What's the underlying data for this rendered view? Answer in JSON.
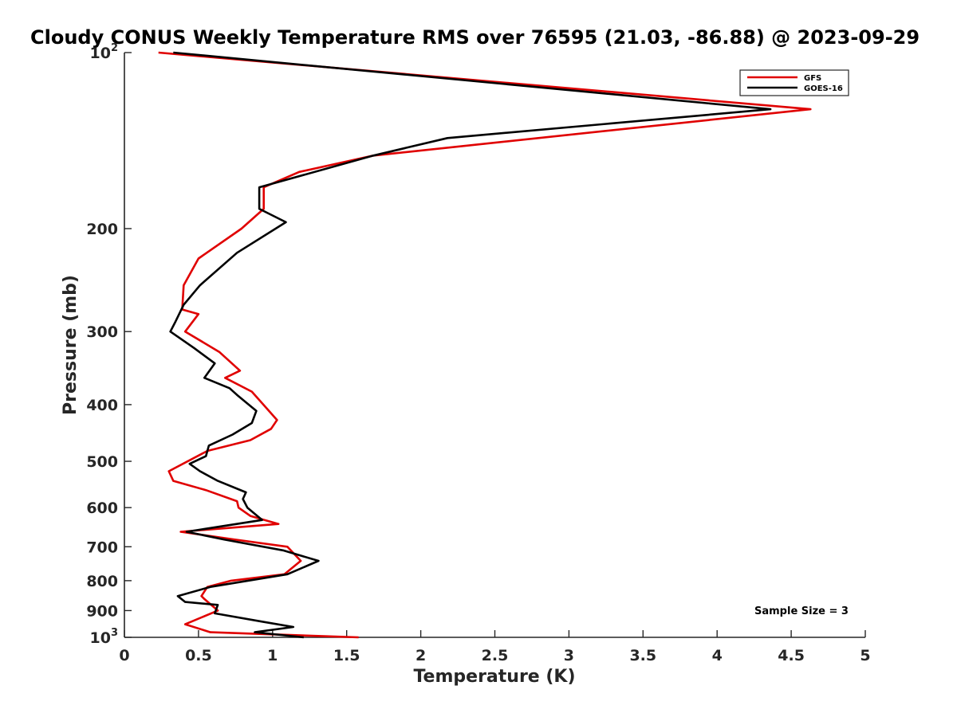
{
  "chart_data": {
    "type": "line",
    "title": "Cloudy CONUS Weekly Temperature RMS over 76595 (21.03, -86.88) @ 2023-09-29",
    "xlabel": "Temperature (K)",
    "ylabel": "Pressure (mb)",
    "xlim": [
      0,
      5
    ],
    "ylim": [
      1000,
      100
    ],
    "yscale": "log",
    "y_reversed": true,
    "grid": false,
    "legend_position": "top-right",
    "x_ticks": [
      "0",
      "0.5",
      "1",
      "1.5",
      "2",
      "2.5",
      "3",
      "3.5",
      "4",
      "4.5",
      "5"
    ],
    "x_tick_values": [
      0,
      0.5,
      1,
      1.5,
      2,
      2.5,
      3,
      3.5,
      4,
      4.5,
      5
    ],
    "y_ticks": [
      {
        "value": 100,
        "base": "10",
        "exp": "2"
      },
      {
        "value": 200,
        "base": "200",
        "exp": ""
      },
      {
        "value": 300,
        "base": "300",
        "exp": ""
      },
      {
        "value": 400,
        "base": "400",
        "exp": ""
      },
      {
        "value": 500,
        "base": "500",
        "exp": ""
      },
      {
        "value": 600,
        "base": "600",
        "exp": ""
      },
      {
        "value": 700,
        "base": "700",
        "exp": ""
      },
      {
        "value": 800,
        "base": "800",
        "exp": ""
      },
      {
        "value": 900,
        "base": "900",
        "exp": ""
      },
      {
        "value": 1000,
        "base": "10",
        "exp": "3"
      }
    ],
    "series": [
      {
        "name": "GFS",
        "color": "#e00000",
        "points": [
          [
            0.23,
            100
          ],
          [
            4.63,
            125
          ],
          [
            1.68,
            150
          ],
          [
            1.18,
            160
          ],
          [
            0.94,
            170
          ],
          [
            0.94,
            185
          ],
          [
            0.79,
            200
          ],
          [
            0.5,
            225
          ],
          [
            0.4,
            250
          ],
          [
            0.39,
            275
          ],
          [
            0.5,
            280
          ],
          [
            0.41,
            300
          ],
          [
            0.64,
            325
          ],
          [
            0.78,
            350
          ],
          [
            0.68,
            360
          ],
          [
            0.86,
            380
          ],
          [
            1.03,
            425
          ],
          [
            0.99,
            440
          ],
          [
            0.85,
            460
          ],
          [
            0.56,
            480
          ],
          [
            0.3,
            520
          ],
          [
            0.33,
            540
          ],
          [
            0.55,
            560
          ],
          [
            0.76,
            585
          ],
          [
            0.77,
            600
          ],
          [
            0.85,
            620
          ],
          [
            1.04,
            640
          ],
          [
            0.38,
            660
          ],
          [
            0.74,
            680
          ],
          [
            1.1,
            700
          ],
          [
            1.19,
            740
          ],
          [
            1.08,
            780
          ],
          [
            0.72,
            800
          ],
          [
            0.56,
            820
          ],
          [
            0.52,
            850
          ],
          [
            0.54,
            860
          ],
          [
            0.63,
            900
          ],
          [
            0.41,
            950
          ],
          [
            0.58,
            980
          ],
          [
            1.58,
            1000
          ]
        ]
      },
      {
        "name": "GOES-16",
        "color": "#000000",
        "points": [
          [
            0.33,
            100
          ],
          [
            4.36,
            125
          ],
          [
            2.18,
            140
          ],
          [
            1.68,
            150
          ],
          [
            0.91,
            170
          ],
          [
            0.91,
            185
          ],
          [
            1.09,
            195
          ],
          [
            0.76,
            220
          ],
          [
            0.51,
            250
          ],
          [
            0.4,
            270
          ],
          [
            0.34,
            290
          ],
          [
            0.31,
            300
          ],
          [
            0.47,
            320
          ],
          [
            0.61,
            340
          ],
          [
            0.54,
            360
          ],
          [
            0.71,
            375
          ],
          [
            0.76,
            385
          ],
          [
            0.89,
            410
          ],
          [
            0.86,
            430
          ],
          [
            0.73,
            450
          ],
          [
            0.57,
            470
          ],
          [
            0.55,
            490
          ],
          [
            0.44,
            505
          ],
          [
            0.51,
            520
          ],
          [
            0.63,
            540
          ],
          [
            0.82,
            565
          ],
          [
            0.8,
            580
          ],
          [
            0.83,
            600
          ],
          [
            0.93,
            630
          ],
          [
            0.42,
            660
          ],
          [
            0.67,
            680
          ],
          [
            1.07,
            710
          ],
          [
            1.31,
            740
          ],
          [
            1.1,
            780
          ],
          [
            0.58,
            820
          ],
          [
            0.36,
            850
          ],
          [
            0.41,
            870
          ],
          [
            0.63,
            880
          ],
          [
            0.61,
            910
          ],
          [
            0.93,
            940
          ],
          [
            1.14,
            960
          ],
          [
            0.88,
            980
          ],
          [
            1.21,
            1000
          ]
        ]
      }
    ],
    "annotations": [
      {
        "text": "Sample Size = 3",
        "position": "bottom-right"
      }
    ]
  }
}
